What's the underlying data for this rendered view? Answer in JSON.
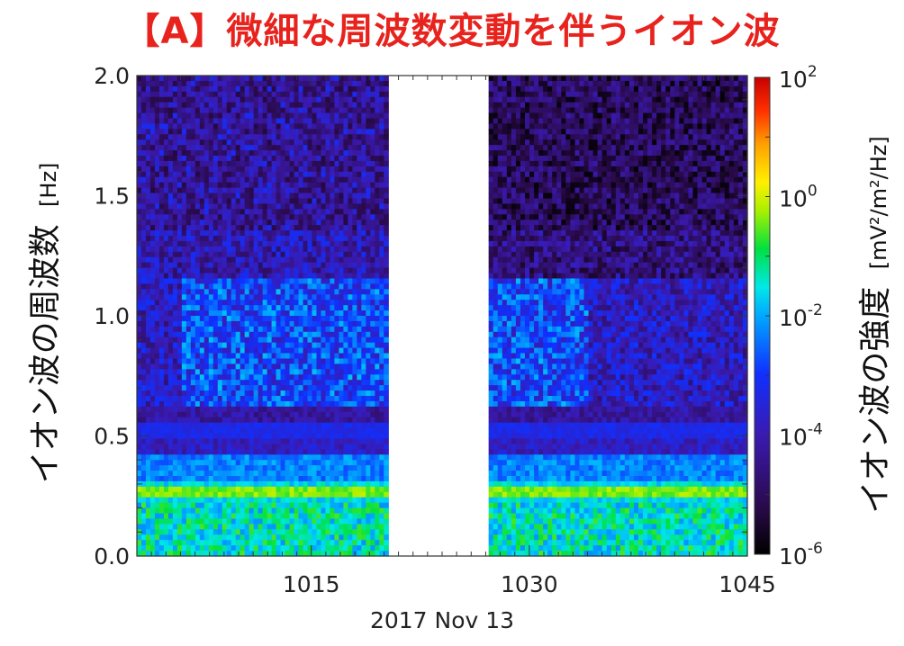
{
  "chart_data": {
    "type": "heatmap",
    "title": "【A】微細な周波数変動を伴うイオン波",
    "ylabel": "イオン波の周波数",
    "ylabel_unit": "[Hz]",
    "ylim": [
      0.0,
      2.0
    ],
    "yticks": [
      "0.0",
      "0.5",
      "1.0",
      "1.5",
      "2.0"
    ],
    "xlabel": "2017 Nov 13",
    "xlim_minutes": [
      1003,
      1045
    ],
    "xticks": [
      "1015",
      "1030",
      "1045"
    ],
    "xtick_minutes": [
      1015,
      1030,
      1045
    ],
    "data_gap_minutes": [
      1020.3,
      1027.2
    ],
    "colorbar": {
      "label": "イオン波の強度",
      "unit": "[mV²/m²/Hz]",
      "scale": "log",
      "range_exponent": [
        -6,
        2
      ],
      "ticks": [
        {
          "base": "10",
          "exp": "2"
        },
        {
          "base": "10",
          "exp": "0"
        },
        {
          "base": "10",
          "exp": "-2"
        },
        {
          "base": "10",
          "exp": "-4"
        },
        {
          "base": "10",
          "exp": "-6"
        }
      ],
      "tick_exponents": [
        2,
        0,
        -2,
        -4,
        -6
      ],
      "colormap": "rainbow (black-purple-blue-cyan-green-yellow-orange-red)"
    },
    "features": [
      {
        "name": "background",
        "freq_range_hz": [
          0.3,
          2.0
        ],
        "log_intensity": -4.5
      },
      {
        "name": "strong low-frequency band",
        "freq_hz": 0.27,
        "log_intensity": -0.3
      },
      {
        "name": "green band",
        "freq_hz": 0.35,
        "log_intensity": -2.2
      },
      {
        "name": "cyan band",
        "freq_hz": 0.52,
        "log_intensity": -3.4
      },
      {
        "name": "fine-frequency fluctuating ion waves",
        "freq_range_hz": [
          0.65,
          1.15
        ],
        "log_intensity": -2.8
      }
    ]
  },
  "colors": {
    "title": "#e8231e",
    "axis": "#222222"
  }
}
